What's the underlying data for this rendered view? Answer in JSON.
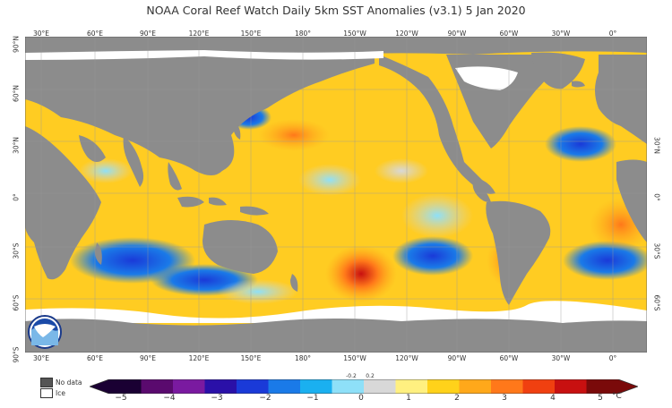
{
  "title": "NOAA Coral Reef Watch Daily 5km SST Anomalies  (v3.1)   5 Jan 2020",
  "lon_ticks": [
    "30°E",
    "60°E",
    "90°E",
    "120°E",
    "150°E",
    "180°",
    "150°W",
    "120°W",
    "90°W",
    "60°W",
    "30°W",
    "0°"
  ],
  "lat_ticks_left": [
    "90°N",
    "60°N",
    "30°N",
    "0°",
    "30°S",
    "60°S",
    "90°S"
  ],
  "lat_ticks_right": [
    "30°N",
    "0°",
    "30°S",
    "60°S"
  ],
  "legend": {
    "no_data": "No data",
    "ice": "Ice"
  },
  "colorbar": {
    "labels": [
      "−5",
      "−4",
      "−3",
      "−2",
      "−1",
      "0",
      "1",
      "2",
      "3",
      "4",
      "5"
    ],
    "minor_labels": [
      "-0.2",
      "0.2"
    ],
    "unit": "°C",
    "colors": [
      "#1a0033",
      "#5a0a6e",
      "#7a1aa0",
      "#2a10a8",
      "#1a3ad8",
      "#1a7ae8",
      "#1ab0f0",
      "#8ee0f8",
      "#d8d8d8",
      "#fff080",
      "#ffd21a",
      "#ffa81a",
      "#ff781a",
      "#f04010",
      "#c81010",
      "#7a0a0a"
    ]
  },
  "colors": {
    "land": "#8c8c8c",
    "ice": "#ffffff",
    "no_data": "#555555"
  }
}
